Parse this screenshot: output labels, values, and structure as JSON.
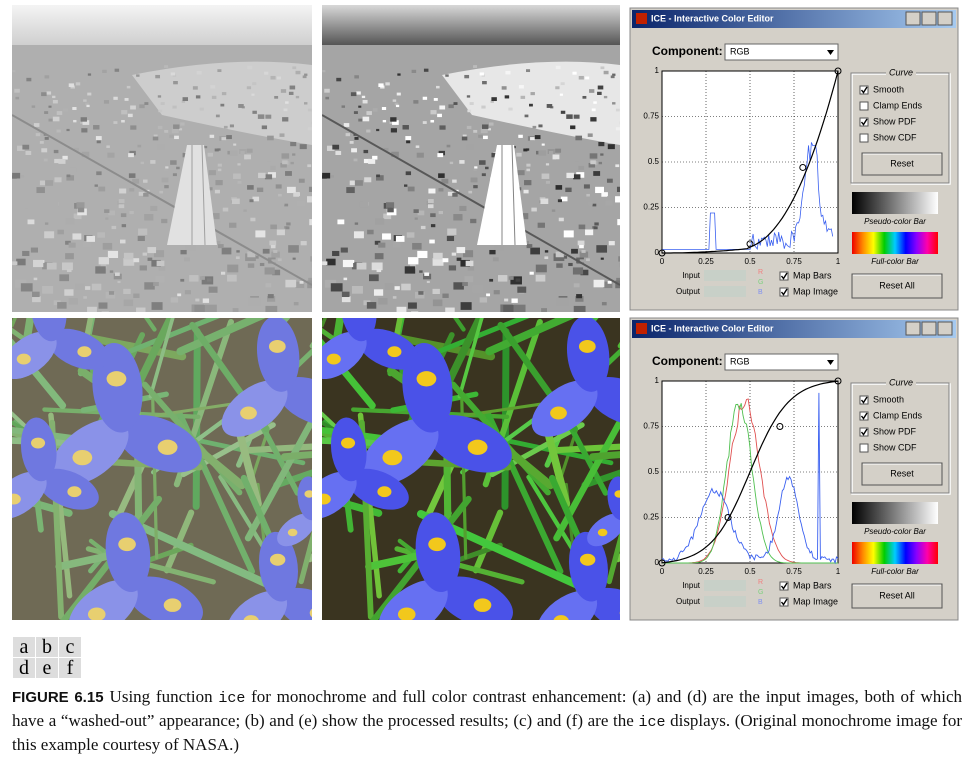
{
  "ice_windows": [
    {
      "title": "ICE - Interactive Color Editor",
      "component_label": "Component:",
      "component_value": "RGB",
      "y_ticks": [
        1,
        0.75,
        0.5,
        0.25,
        0
      ],
      "x_ticks": [
        0,
        0.25,
        0.5,
        0.75,
        1
      ],
      "group_title": "Curve",
      "checkboxes": [
        {
          "label": "Smooth",
          "checked": true
        },
        {
          "label": "Clamp Ends",
          "checked": false
        },
        {
          "label": "Show PDF",
          "checked": true
        },
        {
          "label": "Show CDF",
          "checked": false
        }
      ],
      "reset": "Reset",
      "pseudo_bar": "Pseudo-color Bar",
      "full_bar": "Full-color Bar",
      "input": "Input",
      "output": "Output",
      "channels": [
        "R",
        "G",
        "B"
      ],
      "map_bars": {
        "label": "Map Bars",
        "checked": true
      },
      "map_image": {
        "label": "Map Image",
        "checked": true
      },
      "reset_all": "Reset All"
    },
    {
      "title": "ICE - Interactive Color Editor",
      "component_label": "Component:",
      "component_value": "RGB",
      "y_ticks": [
        1,
        0.75,
        0.5,
        0.25,
        0
      ],
      "x_ticks": [
        0,
        0.25,
        0.5,
        0.75,
        1
      ],
      "group_title": "Curve",
      "checkboxes": [
        {
          "label": "Smooth",
          "checked": true
        },
        {
          "label": "Clamp Ends",
          "checked": true
        },
        {
          "label": "Show PDF",
          "checked": true
        },
        {
          "label": "Show CDF",
          "checked": false
        }
      ],
      "reset": "Reset",
      "pseudo_bar": "Pseudo-color Bar",
      "full_bar": "Full-color Bar",
      "input": "Input",
      "output": "Output",
      "channels": [
        "R",
        "G",
        "B"
      ],
      "map_bars": {
        "label": "Map Bars",
        "checked": true
      },
      "map_image": {
        "label": "Map Image",
        "checked": true
      },
      "reset_all": "Reset All"
    }
  ],
  "panel_labels": [
    [
      "a",
      "b",
      "c"
    ],
    [
      "d",
      "e",
      "f"
    ]
  ],
  "caption": {
    "figure": "FIGURE 6.15",
    "parts": [
      "Using function ",
      "ice",
      " for monochrome and full color contrast enhancement: (a) and (d) are the input images, both of which have a “washed-out” appearance; (b) and (e) show the processed results; (c) and (f) are the ",
      "ice",
      " displays. (Original monochrome image for this example courtesy of NASA.)"
    ]
  }
}
